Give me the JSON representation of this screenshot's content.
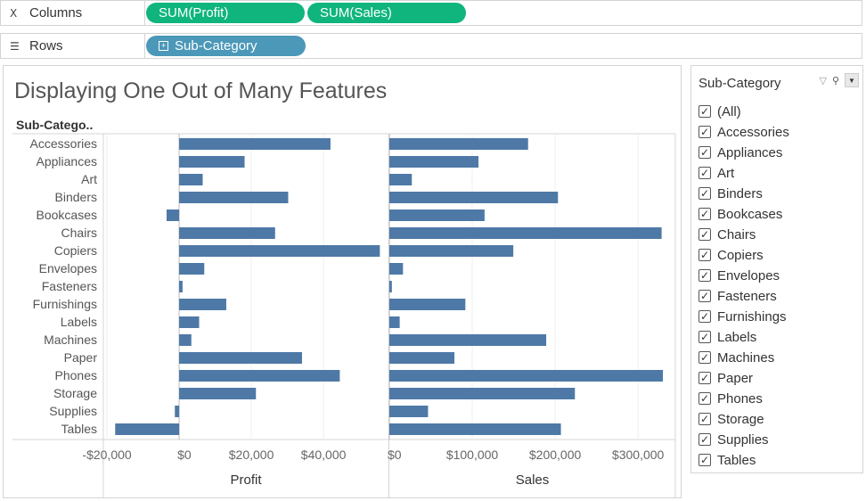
{
  "shelves": {
    "columns": {
      "label": "Columns",
      "pills": [
        "SUM(Profit)",
        "SUM(Sales)"
      ]
    },
    "rows": {
      "label": "Rows",
      "pills": [
        "Sub-Category"
      ]
    }
  },
  "view": {
    "title": "Displaying One Out of Many Features",
    "row_header": "Sub-Catego.."
  },
  "chart_data": [
    {
      "type": "bar",
      "orientation": "horizontal",
      "categories": [
        "Accessories",
        "Appliances",
        "Art",
        "Binders",
        "Bookcases",
        "Chairs",
        "Copiers",
        "Envelopes",
        "Fasteners",
        "Furnishings",
        "Labels",
        "Machines",
        "Paper",
        "Phones",
        "Storage",
        "Supplies",
        "Tables"
      ],
      "values": [
        41937,
        18138,
        6528,
        30222,
        -3473,
        26590,
        55618,
        6964,
        950,
        13059,
        5546,
        3385,
        34054,
        44516,
        21279,
        -1189,
        -17725
      ],
      "xlabel": "Profit",
      "xlim": [
        -21000,
        58000
      ],
      "ticks": [
        -20000,
        0,
        20000,
        40000
      ],
      "tick_labels": [
        "-$20,000",
        "$0",
        "$20,000",
        "$40,000"
      ],
      "color": "#4e79a7",
      "grid": true
    },
    {
      "type": "bar",
      "orientation": "horizontal",
      "categories": [
        "Accessories",
        "Appliances",
        "Art",
        "Binders",
        "Bookcases",
        "Chairs",
        "Copiers",
        "Envelopes",
        "Fasteners",
        "Furnishings",
        "Labels",
        "Machines",
        "Paper",
        "Phones",
        "Storage",
        "Supplies",
        "Tables"
      ],
      "values": [
        167380,
        107532,
        27119,
        203413,
        114880,
        328449,
        149528,
        16476,
        3024,
        91705,
        12486,
        189239,
        78479,
        330007,
        223844,
        46674,
        206966
      ],
      "xlabel": "Sales",
      "xlim": [
        0,
        345000
      ],
      "ticks": [
        0,
        100000,
        200000,
        300000
      ],
      "tick_labels": [
        "$0",
        "$100,000",
        "$200,000",
        "$300,000"
      ],
      "color": "#4e79a7",
      "grid": true
    }
  ],
  "filter": {
    "title": "Sub-Category",
    "items": [
      {
        "label": "(All)",
        "checked": true
      },
      {
        "label": "Accessories",
        "checked": true
      },
      {
        "label": "Appliances",
        "checked": true
      },
      {
        "label": "Art",
        "checked": true
      },
      {
        "label": "Binders",
        "checked": true
      },
      {
        "label": "Bookcases",
        "checked": true
      },
      {
        "label": "Chairs",
        "checked": true
      },
      {
        "label": "Copiers",
        "checked": true
      },
      {
        "label": "Envelopes",
        "checked": true
      },
      {
        "label": "Fasteners",
        "checked": true
      },
      {
        "label": "Furnishings",
        "checked": true
      },
      {
        "label": "Labels",
        "checked": true
      },
      {
        "label": "Machines",
        "checked": true
      },
      {
        "label": "Paper",
        "checked": true
      },
      {
        "label": "Phones",
        "checked": true
      },
      {
        "label": "Storage",
        "checked": true
      },
      {
        "label": "Supplies",
        "checked": true
      },
      {
        "label": "Tables",
        "checked": true
      }
    ]
  }
}
